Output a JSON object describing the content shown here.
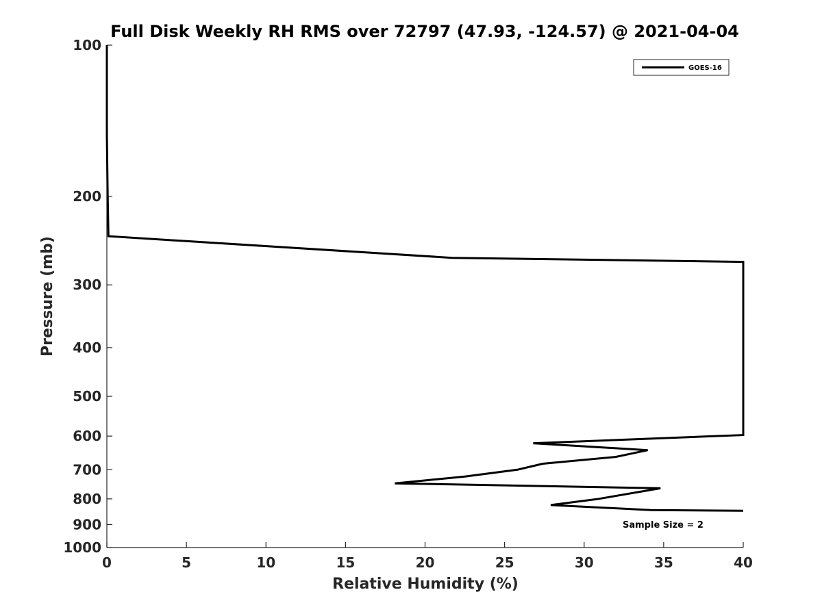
{
  "chart_data": {
    "type": "line",
    "title": "Full Disk Weekly RH RMS over 72797 (47.93, -124.57) @ 2021-04-04",
    "xlabel": "Relative Humidity (%)",
    "ylabel": "Pressure (mb)",
    "xlim": [
      0,
      40
    ],
    "ylim": [
      100,
      1000
    ],
    "yscale": "log",
    "yreversed": true,
    "xticks": [
      0,
      5,
      10,
      15,
      20,
      25,
      30,
      35,
      40
    ],
    "yticks": [
      100,
      200,
      300,
      400,
      500,
      600,
      700,
      800,
      900,
      1000
    ],
    "grid": false,
    "legend_position": "top-right",
    "annotation": "Sample Size = 2",
    "series": [
      {
        "name": "GOES-16",
        "color": "#000000",
        "points": [
          [
            0.0,
            100
          ],
          [
            0.0,
            150
          ],
          [
            0.05,
            200
          ],
          [
            0.1,
            240
          ],
          [
            21.7,
            265
          ],
          [
            40.0,
            270
          ],
          [
            40.0,
            597
          ],
          [
            26.8,
            620
          ],
          [
            34.0,
            640
          ],
          [
            32.0,
            660
          ],
          [
            27.4,
            681
          ],
          [
            25.8,
            700
          ],
          [
            22.5,
            722
          ],
          [
            18.1,
            745
          ],
          [
            34.8,
            762
          ],
          [
            30.8,
            801
          ],
          [
            27.9,
            823
          ],
          [
            34.2,
            842
          ],
          [
            40.0,
            845
          ]
        ]
      }
    ]
  }
}
